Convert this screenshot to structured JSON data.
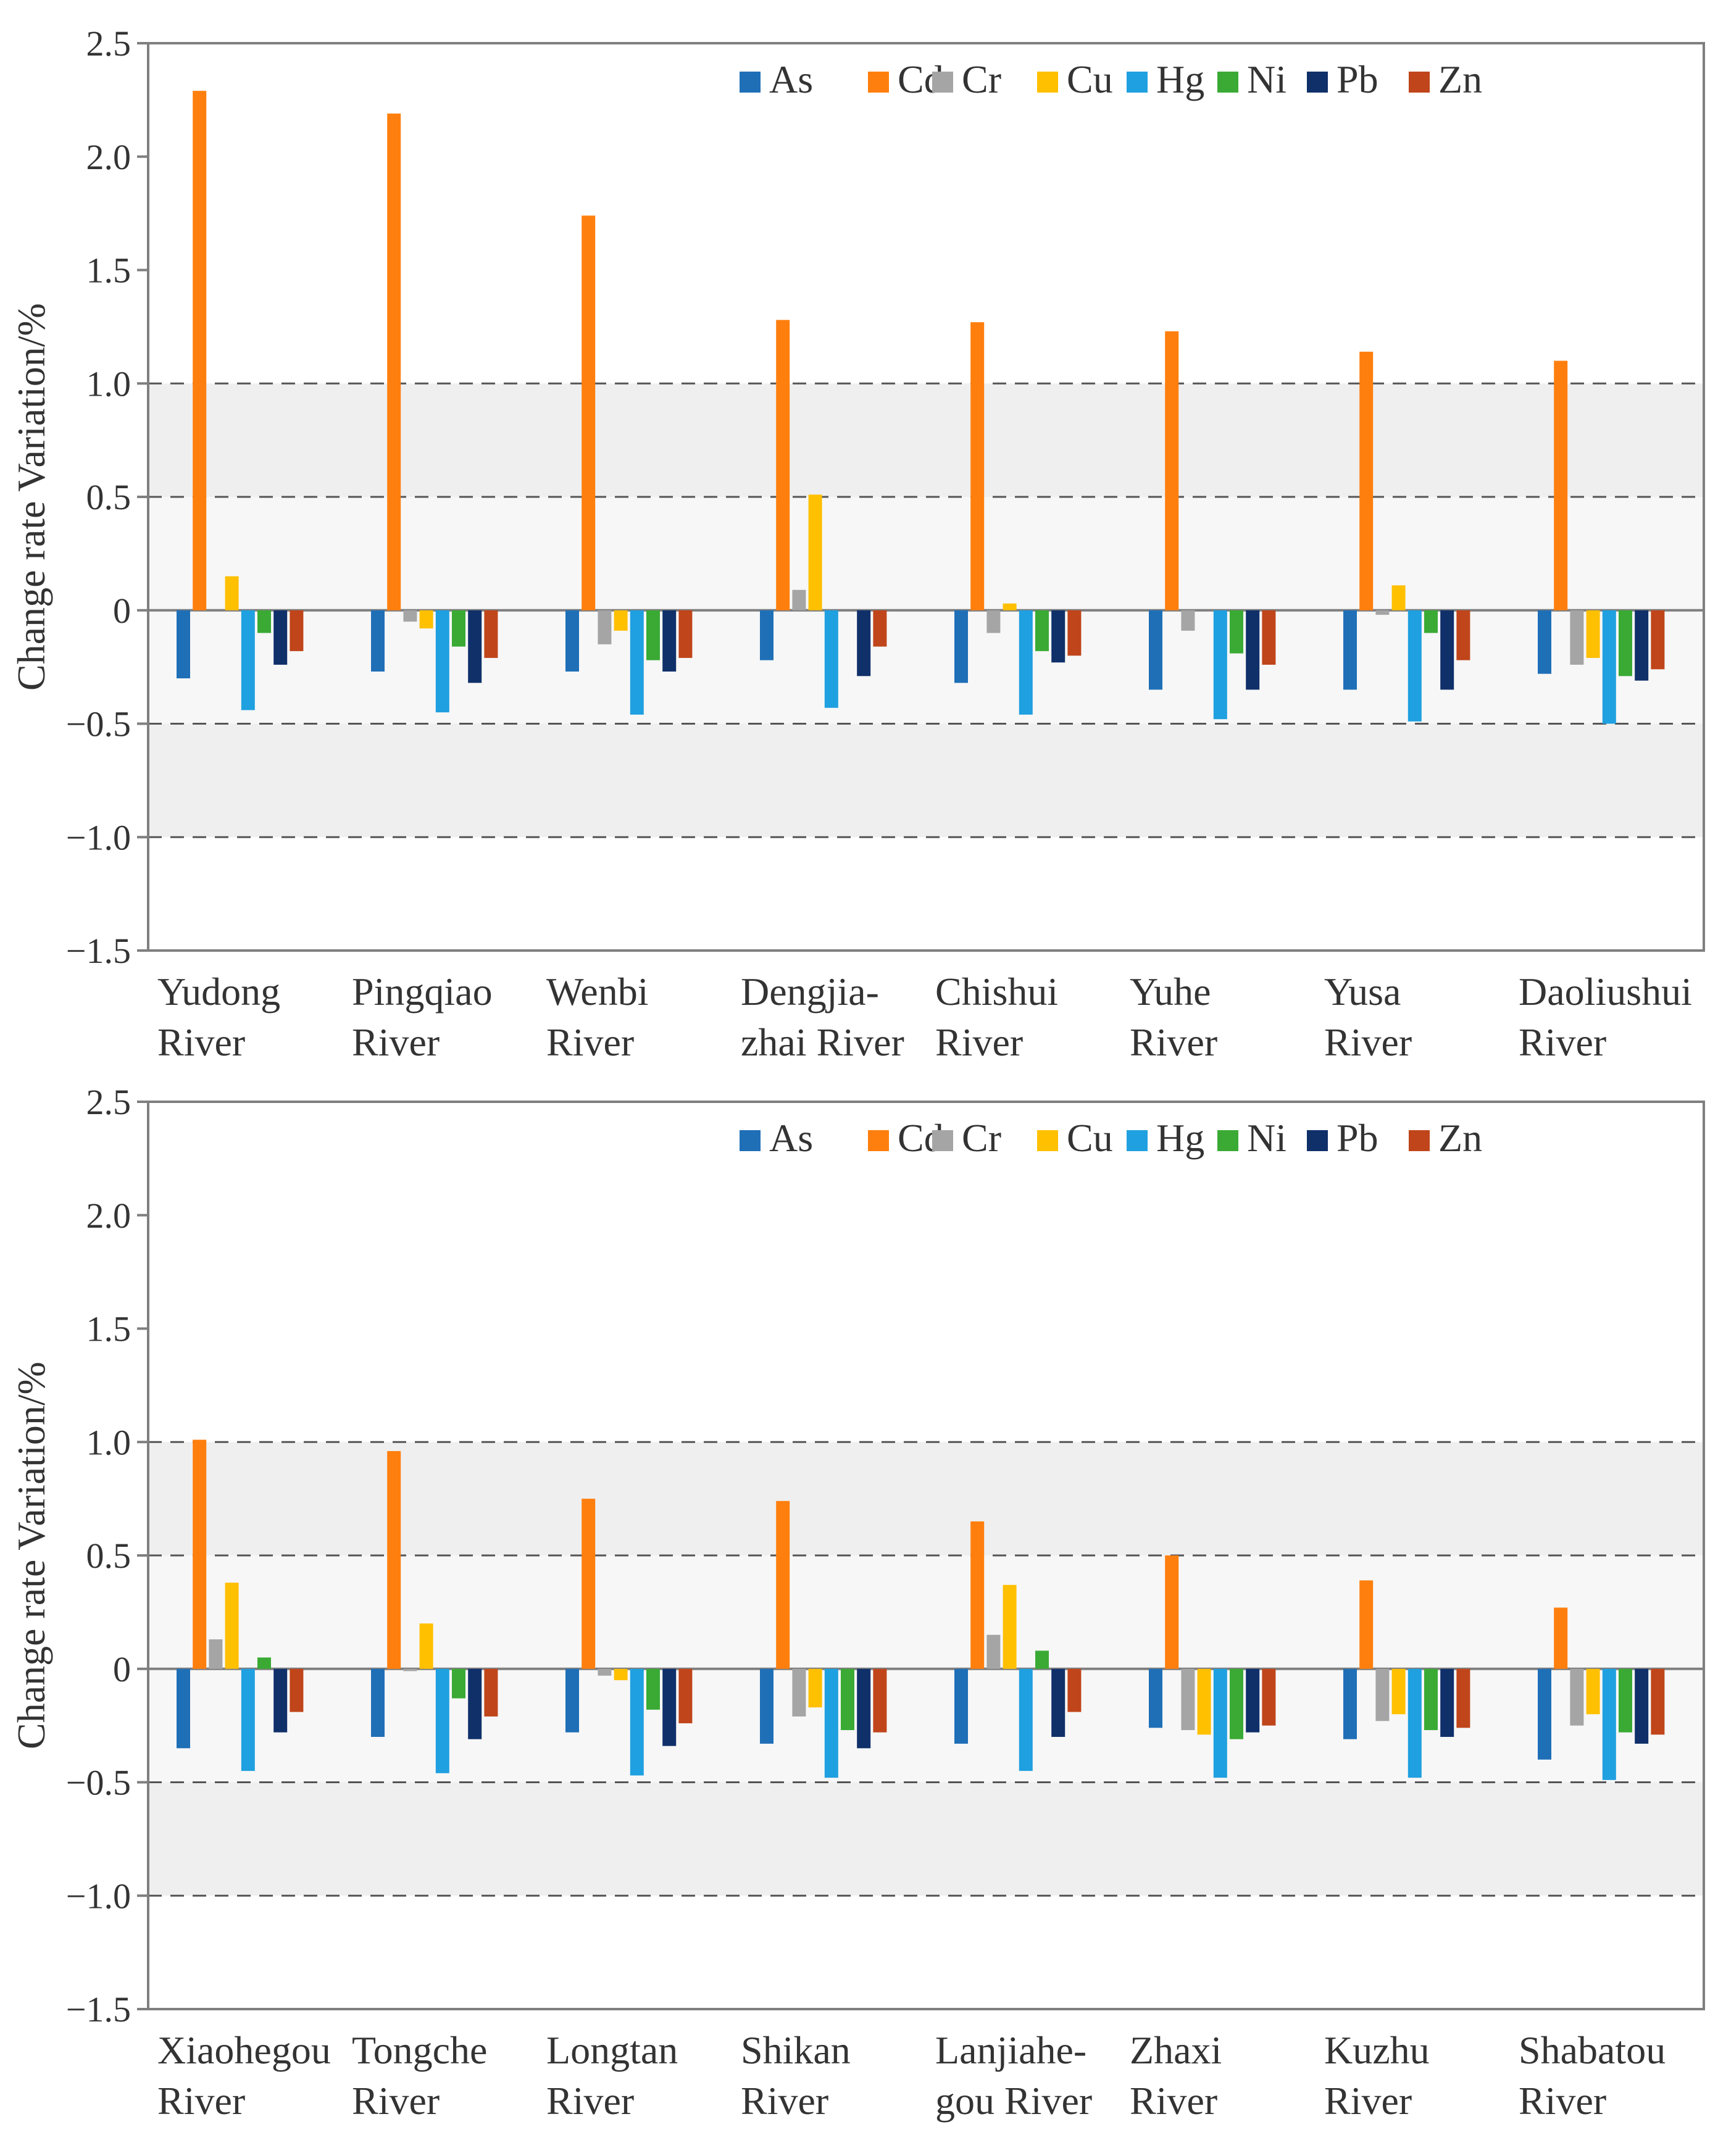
{
  "chart_data": [
    {
      "type": "bar",
      "title": "",
      "xlabel": "",
      "ylabel": "Change rate Variation/%",
      "ylim": [
        -1.5,
        2.5
      ],
      "yticks": [
        "2.5",
        "2.0",
        "1.5",
        "1.0",
        "0.5",
        "0",
        "−0.5",
        "−1.0",
        "−1.5"
      ],
      "ytick_values": [
        2.5,
        2.0,
        1.5,
        1.0,
        0.5,
        0,
        -0.5,
        -1.0,
        -1.5
      ],
      "bands": [
        {
          "from": -0.5,
          "to": 0.5,
          "color": "#f7f7f7"
        },
        {
          "from": 0.5,
          "to": 1.0,
          "color": "#efefef"
        },
        {
          "from": -1.0,
          "to": -0.5,
          "color": "#efefef"
        }
      ],
      "dashed_lines": [
        1.0,
        0.5,
        -0.5,
        -1.0
      ],
      "legend_position": "top-right",
      "categories": [
        [
          "Yudong",
          "River"
        ],
        [
          "Pingqiao",
          "River"
        ],
        [
          "Wenbi",
          "River"
        ],
        [
          "Dengjia-",
          "zhai River"
        ],
        [
          "Chishui",
          "River"
        ],
        [
          "Yuhe",
          "River"
        ],
        [
          "Yusa",
          "River"
        ],
        [
          "Daoliushui",
          "River"
        ]
      ],
      "series": [
        {
          "name": "As",
          "color": "#1f6fb7",
          "values": [
            -0.3,
            -0.27,
            -0.27,
            -0.22,
            -0.32,
            -0.35,
            -0.35,
            -0.28
          ]
        },
        {
          "name": "Cd",
          "color": "#ff7f0e",
          "values": [
            2.29,
            2.19,
            1.74,
            1.28,
            1.27,
            1.23,
            1.14,
            1.1
          ]
        },
        {
          "name": "Cr",
          "color": "#a5a5a5",
          "values": [
            0.0,
            -0.05,
            -0.15,
            0.09,
            -0.1,
            -0.09,
            -0.02,
            -0.24
          ]
        },
        {
          "name": "Cu",
          "color": "#ffc000",
          "values": [
            0.15,
            -0.08,
            -0.09,
            0.51,
            0.03,
            0.0,
            0.11,
            -0.21
          ]
        },
        {
          "name": "Hg",
          "color": "#1fa0e0",
          "values": [
            -0.44,
            -0.45,
            -0.46,
            -0.43,
            -0.46,
            -0.48,
            -0.49,
            -0.5
          ]
        },
        {
          "name": "Ni",
          "color": "#3aaa35",
          "values": [
            -0.1,
            -0.16,
            -0.22,
            0.0,
            -0.18,
            -0.19,
            -0.1,
            -0.29
          ]
        },
        {
          "name": "Pb",
          "color": "#10306a",
          "values": [
            -0.24,
            -0.32,
            -0.27,
            -0.29,
            -0.23,
            -0.35,
            -0.35,
            -0.31
          ]
        },
        {
          "name": "Zn",
          "color": "#c0451b",
          "values": [
            -0.18,
            -0.21,
            -0.21,
            -0.16,
            -0.2,
            -0.24,
            -0.22,
            -0.26
          ]
        }
      ]
    },
    {
      "type": "bar",
      "title": "",
      "xlabel": "",
      "ylabel": "Change rate Variation/%",
      "ylim": [
        -1.5,
        2.5
      ],
      "yticks": [
        "2.5",
        "2.0",
        "1.5",
        "1.0",
        "0.5",
        "0",
        "−0.5",
        "−1.0",
        "−1.5"
      ],
      "ytick_values": [
        2.5,
        2.0,
        1.5,
        1.0,
        0.5,
        0,
        -0.5,
        -1.0,
        -1.5
      ],
      "bands": [
        {
          "from": -0.5,
          "to": 0.5,
          "color": "#f7f7f7"
        },
        {
          "from": 0.5,
          "to": 1.0,
          "color": "#efefef"
        },
        {
          "from": -1.0,
          "to": -0.5,
          "color": "#efefef"
        }
      ],
      "dashed_lines": [
        1.0,
        0.5,
        -0.5,
        -1.0
      ],
      "legend_position": "top-right",
      "categories": [
        [
          "Xiaohegou",
          "River"
        ],
        [
          "Tongche",
          "River"
        ],
        [
          "Longtan",
          "River"
        ],
        [
          "Shikan",
          "River"
        ],
        [
          "Lanjiahe-",
          "gou River"
        ],
        [
          "Zhaxi",
          "River"
        ],
        [
          "Kuzhu",
          "River"
        ],
        [
          "Shabatou",
          "River"
        ]
      ],
      "series": [
        {
          "name": "As",
          "color": "#1f6fb7",
          "values": [
            -0.35,
            -0.3,
            -0.28,
            -0.33,
            -0.33,
            -0.26,
            -0.31,
            -0.4
          ]
        },
        {
          "name": "Cd",
          "color": "#ff7f0e",
          "values": [
            1.01,
            0.96,
            0.75,
            0.74,
            0.65,
            0.5,
            0.39,
            0.27
          ]
        },
        {
          "name": "Cr",
          "color": "#a5a5a5",
          "values": [
            0.13,
            -0.01,
            -0.03,
            -0.21,
            0.15,
            -0.27,
            -0.23,
            -0.25
          ]
        },
        {
          "name": "Cu",
          "color": "#ffc000",
          "values": [
            0.38,
            0.2,
            -0.05,
            -0.17,
            0.37,
            -0.29,
            -0.2,
            -0.2
          ]
        },
        {
          "name": "Hg",
          "color": "#1fa0e0",
          "values": [
            -0.45,
            -0.46,
            -0.47,
            -0.48,
            -0.45,
            -0.48,
            -0.48,
            -0.49
          ]
        },
        {
          "name": "Ni",
          "color": "#3aaa35",
          "values": [
            0.05,
            -0.13,
            -0.18,
            -0.27,
            0.08,
            -0.31,
            -0.27,
            -0.28
          ]
        },
        {
          "name": "Pb",
          "color": "#10306a",
          "values": [
            -0.28,
            -0.31,
            -0.34,
            -0.35,
            -0.3,
            -0.28,
            -0.3,
            -0.33
          ]
        },
        {
          "name": "Zn",
          "color": "#c0451b",
          "values": [
            -0.19,
            -0.21,
            -0.24,
            -0.28,
            -0.19,
            -0.25,
            -0.26,
            -0.29
          ]
        }
      ]
    }
  ]
}
